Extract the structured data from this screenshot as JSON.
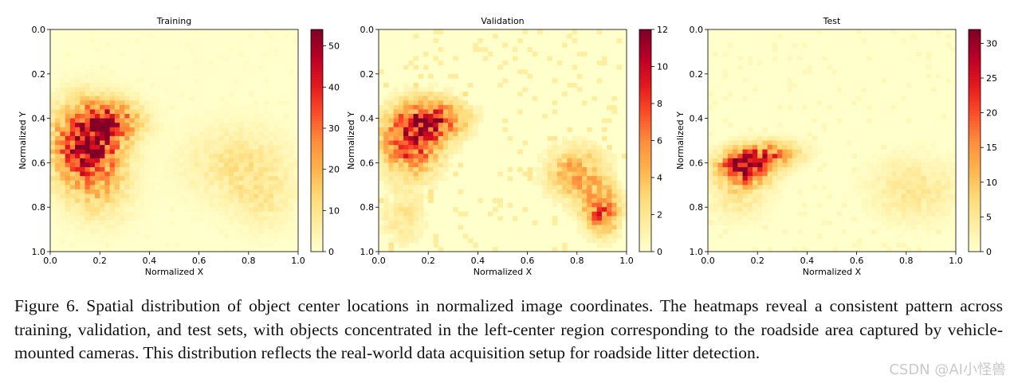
{
  "figure": {
    "caption": "Figure 6. Spatial distribution of object center locations in normalized image coordinates. The heatmaps reveal a consistent pattern across training, validation, and test sets, with objects concentrated in the left-center region corresponding to the roadside area captured by vehicle-mounted cameras. This distribution reflects the real-world data acquisition setup for roadside litter detection.",
    "watermark": "CSDN @AI小怪兽"
  },
  "chart_data": [
    {
      "type": "heatmap",
      "title": "Training",
      "xlabel": "Normalized X",
      "ylabel": "Normalized Y",
      "xlim": [
        0.0,
        1.0
      ],
      "ylim": [
        1.0,
        0.0
      ],
      "y_inverted": true,
      "x_ticks": [
        "0.0",
        "0.2",
        "0.4",
        "0.6",
        "0.8",
        "1.0"
      ],
      "y_ticks": [
        "0.0",
        "0.2",
        "0.4",
        "0.6",
        "0.8",
        "1.0"
      ],
      "colorbar_range": [
        0,
        54
      ],
      "colorbar_ticks": [
        "0",
        "10",
        "20",
        "30",
        "40",
        "50"
      ],
      "colormap": "YlOrRd",
      "bins": 50,
      "clusters": [
        {
          "cx": 0.15,
          "cy": 0.52,
          "sx": 0.09,
          "sy": 0.12,
          "peak": 50
        },
        {
          "cx": 0.26,
          "cy": 0.41,
          "sx": 0.08,
          "sy": 0.06,
          "peak": 24
        },
        {
          "cx": 0.2,
          "cy": 0.74,
          "sx": 0.09,
          "sy": 0.1,
          "peak": 9
        },
        {
          "cx": 0.75,
          "cy": 0.61,
          "sx": 0.14,
          "sy": 0.12,
          "peak": 9
        },
        {
          "cx": 0.86,
          "cy": 0.76,
          "sx": 0.08,
          "sy": 0.1,
          "peak": 6
        }
      ]
    },
    {
      "type": "heatmap",
      "title": "Validation",
      "xlabel": "Normalized X",
      "ylabel": "Normalized Y",
      "xlim": [
        0.0,
        1.0
      ],
      "ylim": [
        1.0,
        0.0
      ],
      "y_inverted": true,
      "x_ticks": [
        "0.0",
        "0.2",
        "0.4",
        "0.6",
        "0.8",
        "1.0"
      ],
      "y_ticks": [
        "0.0",
        "0.2",
        "0.4",
        "0.6",
        "0.8",
        "1.0"
      ],
      "colorbar_range": [
        0,
        12
      ],
      "colorbar_ticks": [
        "0",
        "2",
        "4",
        "6",
        "8",
        "10",
        "12"
      ],
      "colormap": "YlOrRd",
      "bins": 50,
      "clusters": [
        {
          "cx": 0.13,
          "cy": 0.5,
          "sx": 0.08,
          "sy": 0.1,
          "peak": 9
        },
        {
          "cx": 0.24,
          "cy": 0.4,
          "sx": 0.08,
          "sy": 0.06,
          "peak": 7
        },
        {
          "cx": 0.8,
          "cy": 0.65,
          "sx": 0.08,
          "sy": 0.08,
          "peak": 5
        },
        {
          "cx": 0.9,
          "cy": 0.82,
          "sx": 0.05,
          "sy": 0.07,
          "peak": 7
        },
        {
          "cx": 0.1,
          "cy": 0.85,
          "sx": 0.06,
          "sy": 0.08,
          "peak": 2
        }
      ]
    },
    {
      "type": "heatmap",
      "title": "Test",
      "xlabel": "Normalized X",
      "ylabel": "Normalized Y",
      "xlim": [
        0.0,
        1.0
      ],
      "ylim": [
        1.0,
        0.0
      ],
      "y_inverted": true,
      "x_ticks": [
        "0.0",
        "0.2",
        "0.4",
        "0.6",
        "0.8",
        "1.0"
      ],
      "y_ticks": [
        "0.0",
        "0.2",
        "0.4",
        "0.6",
        "0.8",
        "1.0"
      ],
      "colorbar_range": [
        0,
        32
      ],
      "colorbar_ticks": [
        "0",
        "5",
        "10",
        "15",
        "20",
        "25",
        "30"
      ],
      "colormap": "YlOrRd",
      "bins": 50,
      "clusters": [
        {
          "cx": 0.15,
          "cy": 0.62,
          "sx": 0.07,
          "sy": 0.05,
          "peak": 28
        },
        {
          "cx": 0.26,
          "cy": 0.56,
          "sx": 0.08,
          "sy": 0.04,
          "peak": 14
        },
        {
          "cx": 0.12,
          "cy": 0.74,
          "sx": 0.08,
          "sy": 0.08,
          "peak": 5
        },
        {
          "cx": 0.83,
          "cy": 0.72,
          "sx": 0.12,
          "sy": 0.1,
          "peak": 5
        }
      ]
    }
  ]
}
